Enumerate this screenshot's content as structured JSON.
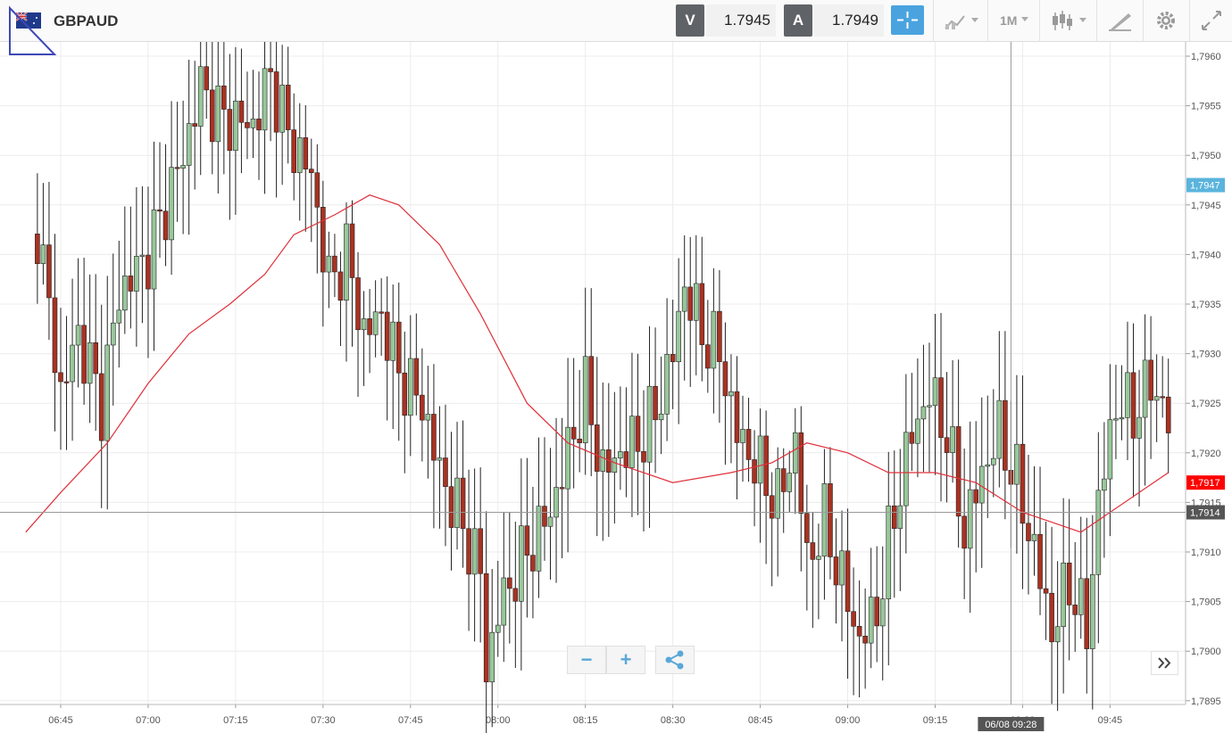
{
  "header": {
    "symbol": "GBPAUD",
    "flag_icon": "gb-au-flag-icon",
    "sell": {
      "label": "V",
      "value": "1.7945"
    },
    "buy": {
      "label": "A",
      "value": "1.7949"
    },
    "timeframe": "1M",
    "icons": [
      "crosshair-icon",
      "indicators-icon",
      "candlestick-icon",
      "drawing-tools-icon",
      "gear-icon",
      "expand-icon"
    ]
  },
  "controls": {
    "zoom_out": "−",
    "zoom_in": "+",
    "share_icon": "share-icon",
    "scroll_icon": "double-chevron-right-icon"
  },
  "crosshair": {
    "price_label": "1,7914",
    "time_label": "06/08 09:28",
    "price": 1.7914
  },
  "price_labels": {
    "bid": {
      "text": "1,7947",
      "price": 1.7947,
      "color": "#5ab4dc"
    },
    "last": {
      "text": "1,7917",
      "price": 1.7917,
      "color": "#ff0000"
    }
  },
  "colors": {
    "up": "#98c79a",
    "down": "#a83222",
    "ma": "#e0303a",
    "grid": "#ececec"
  },
  "chart_data": {
    "type": "candlestick",
    "x_unit": "minutes (06/08)",
    "x_tick_labels": [
      "06:45",
      "07:00",
      "07:15",
      "07:30",
      "07:45",
      "08:00",
      "08:15",
      "08:30",
      "08:45",
      "09:00",
      "09:15",
      "09:30",
      "09:45"
    ],
    "y_tick_labels": [
      "1,7960",
      "1,7955",
      "1,7950",
      "1,7945",
      "1,7940",
      "1,7935",
      "1,7930",
      "1,7925",
      "1,7920",
      "1,7915",
      "1,7910",
      "1,7905",
      "1,7900",
      "1,7895"
    ],
    "ylim": [
      1.7894,
      1.796
    ],
    "series": [
      {
        "kind": "candles",
        "ohlc_note": "open/close in price units; sequential 1-minute candles",
        "key_points": [
          {
            "t": "06:41",
            "c": 1.7943
          },
          {
            "t": "06:45",
            "c": 1.7926
          },
          {
            "t": "06:48",
            "c": 1.7932
          },
          {
            "t": "06:52",
            "c": 1.7925
          },
          {
            "t": "06:55",
            "c": 1.7936
          },
          {
            "t": "07:00",
            "c": 1.794
          },
          {
            "t": "07:03",
            "c": 1.7945
          },
          {
            "t": "07:06",
            "c": 1.795
          },
          {
            "t": "07:09",
            "c": 1.7957
          },
          {
            "t": "07:12",
            "c": 1.7954
          },
          {
            "t": "07:18",
            "c": 1.7953
          },
          {
            "t": "07:21",
            "c": 1.7958
          },
          {
            "t": "07:24",
            "c": 1.7952
          },
          {
            "t": "07:28",
            "c": 1.7948
          },
          {
            "t": "07:31",
            "c": 1.7937
          },
          {
            "t": "07:34",
            "c": 1.794
          },
          {
            "t": "07:37",
            "c": 1.7932
          },
          {
            "t": "07:40",
            "c": 1.7934
          },
          {
            "t": "07:43",
            "c": 1.7928
          },
          {
            "t": "07:47",
            "c": 1.7925
          },
          {
            "t": "07:50",
            "c": 1.7918
          },
          {
            "t": "07:53",
            "c": 1.7914
          },
          {
            "t": "07:57",
            "c": 1.7908
          },
          {
            "t": "07:58",
            "c": 1.7898
          },
          {
            "t": "08:00",
            "c": 1.7904
          },
          {
            "t": "08:03",
            "c": 1.7908
          },
          {
            "t": "08:06",
            "c": 1.7911
          },
          {
            "t": "08:09",
            "c": 1.7914
          },
          {
            "t": "08:12",
            "c": 1.792
          },
          {
            "t": "08:15",
            "c": 1.7926
          },
          {
            "t": "08:18",
            "c": 1.7918
          },
          {
            "t": "08:21",
            "c": 1.792
          },
          {
            "t": "08:24",
            "c": 1.7921
          },
          {
            "t": "08:27",
            "c": 1.7924
          },
          {
            "t": "08:30",
            "c": 1.793
          },
          {
            "t": "08:32",
            "c": 1.7937
          },
          {
            "t": "08:35",
            "c": 1.7932
          },
          {
            "t": "08:38",
            "c": 1.793
          },
          {
            "t": "08:41",
            "c": 1.7922
          },
          {
            "t": "08:44",
            "c": 1.7919
          },
          {
            "t": "08:48",
            "c": 1.7915
          },
          {
            "t": "08:51",
            "c": 1.7921
          },
          {
            "t": "08:53",
            "c": 1.7909
          },
          {
            "t": "08:56",
            "c": 1.7913
          },
          {
            "t": "08:59",
            "c": 1.7907
          },
          {
            "t": "09:02",
            "c": 1.7901
          },
          {
            "t": "09:05",
            "c": 1.7904
          },
          {
            "t": "09:08",
            "c": 1.7914
          },
          {
            "t": "09:11",
            "c": 1.7922
          },
          {
            "t": "09:14",
            "c": 1.7926
          },
          {
            "t": "09:17",
            "c": 1.7922
          },
          {
            "t": "09:20",
            "c": 1.7912
          },
          {
            "t": "09:23",
            "c": 1.7918
          },
          {
            "t": "09:26",
            "c": 1.7922
          },
          {
            "t": "09:29",
            "c": 1.7917
          },
          {
            "t": "09:32",
            "c": 1.791
          },
          {
            "t": "09:35",
            "c": 1.7902
          },
          {
            "t": "09:38",
            "c": 1.7907
          },
          {
            "t": "09:41",
            "c": 1.7902
          },
          {
            "t": "09:43",
            "c": 1.7915
          },
          {
            "t": "09:46",
            "c": 1.7925
          },
          {
            "t": "09:49",
            "c": 1.7924
          },
          {
            "t": "09:52",
            "c": 1.7927
          },
          {
            "t": "09:54",
            "c": 1.7925
          },
          {
            "t": "09:55",
            "c": 1.7922
          }
        ]
      },
      {
        "kind": "moving-average",
        "points": [
          {
            "t": "06:39",
            "v": 1.7912
          },
          {
            "t": "06:45",
            "v": 1.7916
          },
          {
            "t": "06:53",
            "v": 1.7921
          },
          {
            "t": "07:00",
            "v": 1.7927
          },
          {
            "t": "07:07",
            "v": 1.7932
          },
          {
            "t": "07:14",
            "v": 1.7935
          },
          {
            "t": "07:20",
            "v": 1.7938
          },
          {
            "t": "07:25",
            "v": 1.7942
          },
          {
            "t": "07:32",
            "v": 1.7944
          },
          {
            "t": "07:38",
            "v": 1.7946
          },
          {
            "t": "07:43",
            "v": 1.7945
          },
          {
            "t": "07:50",
            "v": 1.7941
          },
          {
            "t": "07:57",
            "v": 1.7934
          },
          {
            "t": "08:05",
            "v": 1.7925
          },
          {
            "t": "08:12",
            "v": 1.7921
          },
          {
            "t": "08:20",
            "v": 1.7919
          },
          {
            "t": "08:30",
            "v": 1.7917
          },
          {
            "t": "08:40",
            "v": 1.7918
          },
          {
            "t": "08:47",
            "v": 1.7919
          },
          {
            "t": "08:53",
            "v": 1.7921
          },
          {
            "t": "09:00",
            "v": 1.792
          },
          {
            "t": "09:07",
            "v": 1.7918
          },
          {
            "t": "09:15",
            "v": 1.7918
          },
          {
            "t": "09:22",
            "v": 1.7917
          },
          {
            "t": "09:30",
            "v": 1.7914
          },
          {
            "t": "09:35",
            "v": 1.7913
          },
          {
            "t": "09:40",
            "v": 1.7912
          },
          {
            "t": "09:45",
            "v": 1.7914
          },
          {
            "t": "09:50",
            "v": 1.7916
          },
          {
            "t": "09:55",
            "v": 1.7918
          }
        ]
      }
    ],
    "grid": true
  }
}
